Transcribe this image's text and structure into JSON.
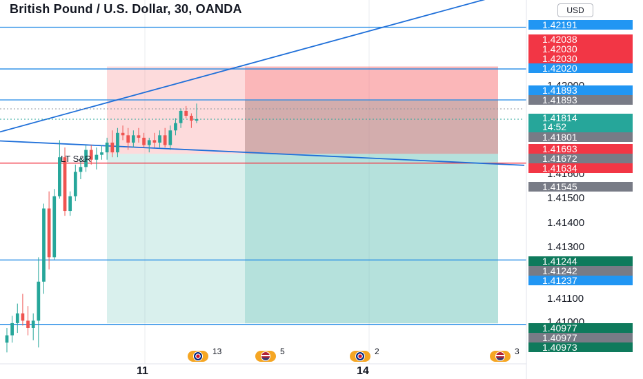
{
  "header": {
    "title": "British Pound / U.S. Dollar, 30, OANDA",
    "currency": "USD",
    "indicator_label": "LT S&R"
  },
  "colors": {
    "up": "#26a69a",
    "down": "#ef5350",
    "line_blue": "#2962ff",
    "line_red": "#f23645",
    "badge_blue": "#2196f3",
    "badge_red": "#f23645",
    "badge_gray": "#787b86",
    "badge_teal": "#26a69a",
    "badge_dark_teal": "#0e7a5c",
    "zone_red": "#f77c80",
    "zone_teal": "#78c9bf"
  },
  "price_axis": {
    "ticks": [
      "1.42000",
      "1.41600",
      "1.41500",
      "1.41400",
      "1.41300",
      "1.41100",
      "1.41000"
    ]
  },
  "price_badges": [
    {
      "value": "1.42191",
      "price": 1.42191,
      "color": "#2196f3"
    },
    {
      "value": "1.42038",
      "price": 1.42038,
      "color": "#f23645"
    },
    {
      "value": "1.42030",
      "price": 1.4203,
      "color": "#f23645"
    },
    {
      "value": "1.42030",
      "price": 1.4203,
      "color": "#f23645"
    },
    {
      "value": "1.42020",
      "price": 1.4202,
      "color": "#2196f3"
    },
    {
      "value": "1.41893",
      "price": 1.41893,
      "color": "#2196f3"
    },
    {
      "value": "1.41893",
      "price": 1.41893,
      "color": "#787b86"
    },
    {
      "value": "1.41814",
      "sub": "14:52",
      "price": 1.41814,
      "color": "#26a69a"
    },
    {
      "value": "1.41801",
      "price": 1.41801,
      "color": "#787b86"
    },
    {
      "value": "1.41693",
      "price": 1.41693,
      "color": "#f23645"
    },
    {
      "value": "1.41672",
      "price": 1.41672,
      "color": "#787b86"
    },
    {
      "value": "1.41634",
      "price": 1.41634,
      "color": "#f23645"
    },
    {
      "value": "1.41545",
      "price": 1.41545,
      "color": "#787b86"
    },
    {
      "value": "1.41244",
      "price": 1.41244,
      "color": "#0e7a5c"
    },
    {
      "value": "1.41242",
      "price": 1.41242,
      "color": "#787b86"
    },
    {
      "value": "1.41237",
      "price": 1.41237,
      "color": "#2196f3"
    },
    {
      "value": "1.40977",
      "price": 1.40977,
      "color": "#0e7a5c"
    },
    {
      "value": "1.40977",
      "price": 1.40977,
      "color": "#787b86"
    },
    {
      "value": "1.40973",
      "price": 1.40973,
      "color": "#0e7a5c"
    }
  ],
  "time_axis": {
    "labels": [
      "11",
      "14"
    ]
  },
  "events": [
    {
      "flag": "uk",
      "count": "13"
    },
    {
      "flag": "us",
      "count": "5"
    },
    {
      "flag": "uk",
      "count": "2"
    },
    {
      "flag": "us",
      "count": "3"
    }
  ],
  "chart_data": {
    "type": "candlestick",
    "symbol": "GBPUSD",
    "interval": "30",
    "ylim": [
      1.4085,
      1.4233
    ],
    "horizontal_lines": [
      1.42191,
      1.4202,
      1.41893,
      1.41634,
      1.41237,
      1.40973
    ],
    "trend_lines": [
      {
        "from": [
          0,
          1.41762
        ],
        "to": [
          760,
          1.42349
        ]
      },
      {
        "from": [
          0,
          1.41725
        ],
        "to": [
          760,
          1.41625
        ]
      }
    ],
    "positions": [
      {
        "type": "short",
        "x_start": 155,
        "x_end": 355,
        "entry": 1.41672,
        "stop": 1.4203,
        "target": 1.40977
      },
      {
        "type": "short",
        "x_start": 355,
        "x_end": 722,
        "entry": 1.41672,
        "stop": 1.4203,
        "target": 1.40977
      }
    ],
    "candles": [
      {
        "o": 1.40898,
        "h": 1.40958,
        "l": 1.40858,
        "c": 1.40928
      },
      {
        "o": 1.40928,
        "h": 1.41008,
        "l": 1.40898,
        "c": 1.40978
      },
      {
        "o": 1.40978,
        "h": 1.41058,
        "l": 1.40938,
        "c": 1.41018
      },
      {
        "o": 1.41018,
        "h": 1.41098,
        "l": 1.40968,
        "c": 1.40988
      },
      {
        "o": 1.40988,
        "h": 1.41048,
        "l": 1.40928,
        "c": 1.40958
      },
      {
        "o": 1.40958,
        "h": 1.41018,
        "l": 1.40908,
        "c": 1.40988
      },
      {
        "o": 1.40988,
        "h": 1.41248,
        "l": 1.40878,
        "c": 1.41148
      },
      {
        "o": 1.41148,
        "h": 1.41468,
        "l": 1.41098,
        "c": 1.41448
      },
      {
        "o": 1.41448,
        "h": 1.41518,
        "l": 1.41198,
        "c": 1.41248
      },
      {
        "o": 1.41248,
        "h": 1.41528,
        "l": 1.41238,
        "c": 1.41498
      },
      {
        "o": 1.41498,
        "h": 1.41728,
        "l": 1.41488,
        "c": 1.41658
      },
      {
        "o": 1.41658,
        "h": 1.41698,
        "l": 1.41418,
        "c": 1.41438
      },
      {
        "o": 1.41438,
        "h": 1.41518,
        "l": 1.41418,
        "c": 1.41498
      },
      {
        "o": 1.41498,
        "h": 1.41628,
        "l": 1.41478,
        "c": 1.41598
      },
      {
        "o": 1.41598,
        "h": 1.41658,
        "l": 1.41568,
        "c": 1.41618
      },
      {
        "o": 1.41618,
        "h": 1.41708,
        "l": 1.41598,
        "c": 1.41688
      },
      {
        "o": 1.41688,
        "h": 1.41708,
        "l": 1.41628,
        "c": 1.41648
      },
      {
        "o": 1.41648,
        "h": 1.41698,
        "l": 1.41608,
        "c": 1.41668
      },
      {
        "o": 1.41668,
        "h": 1.41708,
        "l": 1.41648,
        "c": 1.41678
      },
      {
        "o": 1.41678,
        "h": 1.41738,
        "l": 1.41648,
        "c": 1.41718
      },
      {
        "o": 1.41718,
        "h": 1.41768,
        "l": 1.41658,
        "c": 1.41678
      },
      {
        "o": 1.41678,
        "h": 1.41778,
        "l": 1.41658,
        "c": 1.41758
      },
      {
        "o": 1.41758,
        "h": 1.41788,
        "l": 1.41728,
        "c": 1.41748
      },
      {
        "o": 1.41748,
        "h": 1.41778,
        "l": 1.41688,
        "c": 1.41718
      },
      {
        "o": 1.41718,
        "h": 1.41768,
        "l": 1.41698,
        "c": 1.41748
      },
      {
        "o": 1.41748,
        "h": 1.41778,
        "l": 1.41718,
        "c": 1.41738
      },
      {
        "o": 1.41738,
        "h": 1.41758,
        "l": 1.41698,
        "c": 1.41708
      },
      {
        "o": 1.41708,
        "h": 1.41738,
        "l": 1.41678,
        "c": 1.41728
      },
      {
        "o": 1.41728,
        "h": 1.41758,
        "l": 1.41698,
        "c": 1.41718
      },
      {
        "o": 1.41718,
        "h": 1.41768,
        "l": 1.41698,
        "c": 1.41748
      },
      {
        "o": 1.41748,
        "h": 1.41778,
        "l": 1.41698,
        "c": 1.41708
      },
      {
        "o": 1.41708,
        "h": 1.41788,
        "l": 1.41688,
        "c": 1.41768
      },
      {
        "o": 1.41768,
        "h": 1.41818,
        "l": 1.41748,
        "c": 1.41798
      },
      {
        "o": 1.41798,
        "h": 1.41858,
        "l": 1.41778,
        "c": 1.41848
      },
      {
        "o": 1.41848,
        "h": 1.41868,
        "l": 1.41818,
        "c": 1.41828
      },
      {
        "o": 1.41828,
        "h": 1.41838,
        "l": 1.41778,
        "c": 1.41808
      },
      {
        "o": 1.41808,
        "h": 1.41878,
        "l": 1.41798,
        "c": 1.41814
      }
    ]
  }
}
